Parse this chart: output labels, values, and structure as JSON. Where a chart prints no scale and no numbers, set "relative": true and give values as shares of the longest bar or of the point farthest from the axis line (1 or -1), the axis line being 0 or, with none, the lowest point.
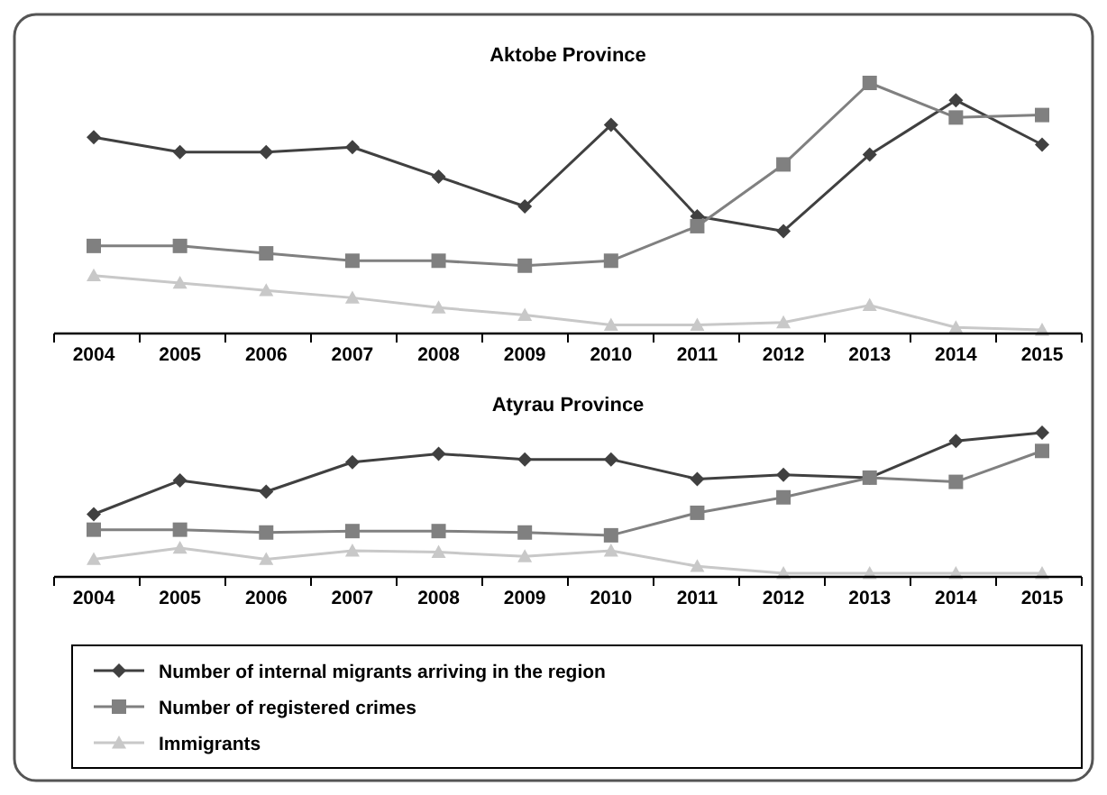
{
  "chart_data": [
    {
      "type": "line",
      "title": "Aktobe Province",
      "relative": true,
      "categories": [
        "2004",
        "2005",
        "2006",
        "2007",
        "2008",
        "2009",
        "2010",
        "2011",
        "2012",
        "2013",
        "2014",
        "2015"
      ],
      "series": [
        {
          "color": "#404040",
          "marker": "diamond",
          "values": [
            0.78,
            0.72,
            0.72,
            0.74,
            0.62,
            0.5,
            0.83,
            0.46,
            0.4,
            0.71,
            0.93,
            0.75
          ]
        },
        {
          "color": "#808080",
          "marker": "square",
          "values": [
            0.34,
            0.34,
            0.31,
            0.28,
            0.28,
            0.26,
            0.28,
            0.42,
            0.67,
            1,
            0.86,
            0.87
          ]
        },
        {
          "color": "#c8c8c8",
          "marker": "triangle",
          "values": [
            0.22,
            0.19,
            0.16,
            0.13,
            0.09,
            0.06,
            0.02,
            0.02,
            0.03,
            0.1,
            0.01,
            0
          ]
        }
      ]
    },
    {
      "type": "line",
      "title": "Atyrau Province",
      "relative": true,
      "legend": "bottom",
      "categories": [
        "2004",
        "2005",
        "2006",
        "2007",
        "2008",
        "2009",
        "2010",
        "2011",
        "2012",
        "2013",
        "2014",
        "2015"
      ],
      "series": [
        {
          "name": "Number of internal migrants arriving in the region",
          "color": "#404040",
          "marker": "diamond",
          "values": [
            0.42,
            0.66,
            0.58,
            0.79,
            0.85,
            0.81,
            0.81,
            0.67,
            0.7,
            0.68,
            0.94,
            1
          ]
        },
        {
          "name": "Number of registered crimes",
          "color": "#808080",
          "marker": "square",
          "values": [
            0.31,
            0.31,
            0.29,
            0.3,
            0.3,
            0.29,
            0.27,
            0.43,
            0.54,
            0.68,
            0.65,
            0.87
          ]
        },
        {
          "name": "Immigrants",
          "color": "#c8c8c8",
          "marker": "triangle",
          "values": [
            0.1,
            0.18,
            0.1,
            0.16,
            0.15,
            0.12,
            0.16,
            0.05,
            0,
            0,
            0,
            0
          ]
        }
      ]
    }
  ]
}
